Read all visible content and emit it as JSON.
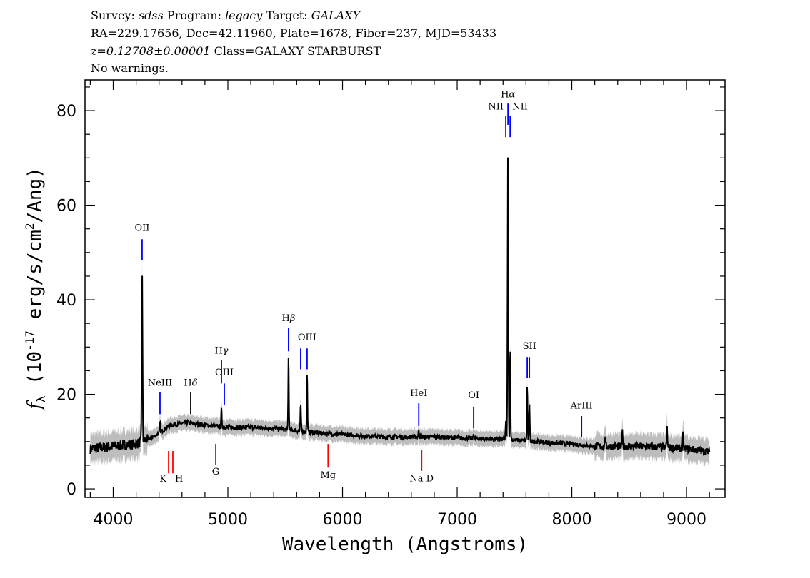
{
  "header": {
    "line1": {
      "survey_label": "Survey:",
      "survey": "sdss",
      "program_label": "Program:",
      "program": "legacy",
      "target_label": "Target:",
      "target": "GALAXY"
    },
    "line2": "RA=229.17656, Dec=42.11960, Plate=1678, Fiber=237, MJD=53433",
    "line3": {
      "z": "z=0.12708±0.00001",
      "class": "Class=GALAXY STARBURST"
    },
    "line4": "No warnings."
  },
  "chart_data": {
    "type": "line",
    "xlabel": "Wavelength (Angstroms)",
    "ylabel": "f_λ (10^-17 erg/s/cm^2/Ang)",
    "xlim": [
      3754,
      9336
    ],
    "ylim": [
      -1.8,
      86.5
    ],
    "x_ticks": [
      4000,
      5000,
      6000,
      7000,
      8000,
      9000
    ],
    "y_ticks": [
      0,
      20,
      40,
      60,
      80
    ],
    "grid": false,
    "colors": {
      "spectrum": "#000000",
      "error": "#bdbdbd",
      "emission": "#0000ff",
      "absorption": "#ff0000",
      "marker_black": "#000000"
    },
    "continuum": [
      [
        3800,
        8.5
      ],
      [
        4000,
        9
      ],
      [
        4200,
        9.5
      ],
      [
        4350,
        11
      ],
      [
        4500,
        13.5
      ],
      [
        4650,
        14
      ],
      [
        4800,
        13.5
      ],
      [
        5000,
        13
      ],
      [
        5200,
        13
      ],
      [
        5400,
        12.8
      ],
      [
        5600,
        12.3
      ],
      [
        5800,
        11.8
      ],
      [
        6000,
        11.5
      ],
      [
        6200,
        11.2
      ],
      [
        6400,
        11
      ],
      [
        6600,
        11
      ],
      [
        6800,
        11
      ],
      [
        7000,
        10.8
      ],
      [
        7200,
        10.6
      ],
      [
        7400,
        10.5
      ],
      [
        7600,
        10.2
      ],
      [
        7800,
        9.8
      ],
      [
        8000,
        9.5
      ],
      [
        8200,
        9
      ],
      [
        8400,
        9
      ],
      [
        8600,
        9
      ],
      [
        8800,
        8.8
      ],
      [
        9000,
        8.5
      ],
      [
        9200,
        7.8
      ]
    ],
    "emission_peaks": [
      [
        4252,
        46
      ],
      [
        4408,
        14
      ],
      [
        4944,
        17
      ],
      [
        5529,
        28.4
      ],
      [
        5635,
        18
      ],
      [
        5691,
        24.6
      ],
      [
        6665,
        12.5
      ],
      [
        7144,
        11.8
      ],
      [
        7424,
        14
      ],
      [
        7443,
        73
      ],
      [
        7462,
        30
      ],
      [
        7611,
        22
      ],
      [
        7630,
        18
      ],
      [
        8290,
        11.5
      ],
      [
        8440,
        12
      ],
      [
        8830,
        13.5
      ],
      [
        8970,
        11.5
      ]
    ],
    "line_markers": [
      {
        "label": "OII",
        "wavelength": 4252,
        "y_range": [
          48.3,
          52.8
        ],
        "label_y": 54.6,
        "color": "#0000ff"
      },
      {
        "label": "NeIII",
        "wavelength": 4408,
        "y_range": [
          15.8,
          20.4
        ],
        "label_y": 21.8,
        "color": "#0000ff"
      },
      {
        "label": "Hδ",
        "wavelength": 4676,
        "y_range": [
          15.8,
          20.4
        ],
        "label_y": 21.8,
        "color": "#000000"
      },
      {
        "label": "Hγ",
        "wavelength": 4944,
        "y_range": [
          22.3,
          27.2
        ],
        "label_y": 28.6,
        "color": "#0000ff"
      },
      {
        "label": "OIII",
        "wavelength": 4969,
        "y_range": [
          17.8,
          22.3
        ],
        "label_y": 24.0,
        "color": "#0000ff"
      },
      {
        "label": "Hβ",
        "wavelength": 5529,
        "y_range": [
          29.1,
          34.0
        ],
        "label_y": 35.5,
        "color": "#0000ff"
      },
      {
        "label": "",
        "wavelength": 5635,
        "y_range": [
          25.3,
          29.7
        ],
        "label_y": 31.4,
        "color": "#0000ff"
      },
      {
        "label": "OIII",
        "wavelength": 5691,
        "y_range": [
          25.3,
          29.7
        ],
        "label_y": 31.4,
        "color": "#0000ff"
      },
      {
        "label": "HeI",
        "wavelength": 6665,
        "y_range": [
          13.3,
          18.1
        ],
        "label_y": 19.6,
        "color": "#0000ff"
      },
      {
        "label": "OI",
        "wavelength": 7144,
        "y_range": [
          12.8,
          17.4
        ],
        "label_y": 19.2,
        "color": "#000000"
      },
      {
        "label": "NII",
        "wavelength": 7424,
        "y_range": [
          74.4,
          78.9
        ],
        "label_y": 80.2,
        "color": "#0000ff",
        "label_anchor": "end"
      },
      {
        "label": "Hα",
        "wavelength": 7443,
        "y_range": [
          77.0,
          81.5
        ],
        "label_y": 82.8,
        "color": "#0000ff"
      },
      {
        "label": "NII",
        "wavelength": 7462,
        "y_range": [
          74.4,
          78.9
        ],
        "label_y": 80.2,
        "color": "#0000ff",
        "label_anchor": "start"
      },
      {
        "label": "",
        "wavelength": 7611,
        "y_range": [
          23.4,
          27.9
        ],
        "label_y": 29.6,
        "color": "#0000ff"
      },
      {
        "label": "SII",
        "wavelength": 7630,
        "y_range": [
          23.4,
          27.9
        ],
        "label_y": 29.6,
        "color": "#0000ff"
      },
      {
        "label": "ArIII",
        "wavelength": 8085,
        "y_range": [
          10.9,
          15.4
        ],
        "label_y": 17.0,
        "color": "#0000ff"
      }
    ],
    "absorption_markers": [
      {
        "label": "K",
        "wavelength": 4483,
        "y_range": [
          3.3,
          8.0
        ],
        "label_y": 1.5,
        "color": "#ff0000",
        "label_anchor": "end"
      },
      {
        "label": "H",
        "wavelength": 4520,
        "y_range": [
          3.3,
          8.0
        ],
        "label_y": 1.5,
        "color": "#ff0000",
        "label_anchor": "start"
      },
      {
        "label": "G",
        "wavelength": 4894,
        "y_range": [
          5.0,
          9.5
        ],
        "label_y": 3.0,
        "color": "#ff0000"
      },
      {
        "label": "Mg",
        "wavelength": 5874,
        "y_range": [
          4.5,
          9.5
        ],
        "label_y": 2.3,
        "color": "#ff0000"
      },
      {
        "label": "Na D",
        "wavelength": 6690,
        "y_range": [
          3.8,
          8.3
        ],
        "label_y": 1.6,
        "color": "#ff0000"
      }
    ]
  }
}
